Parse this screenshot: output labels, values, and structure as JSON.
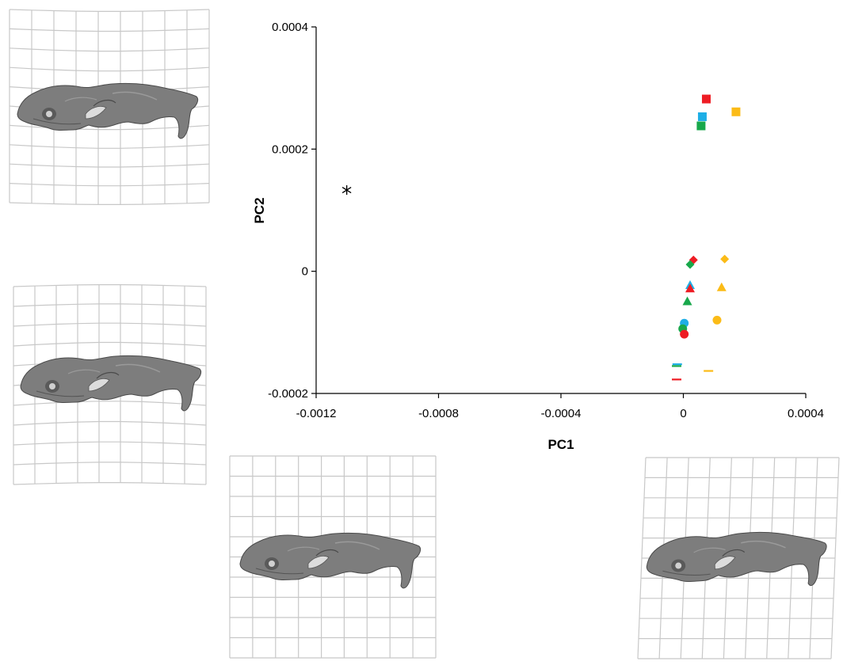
{
  "colors": {
    "red": "#ee1c24",
    "blue": "#1eaee6",
    "green": "#18a84b",
    "orange": "#fbbb17",
    "black": "#000000",
    "grid": "#c8c8c8",
    "skull": "#7d7d7d"
  },
  "chart_data": {
    "type": "scatter",
    "xlabel": "PC1",
    "ylabel": "PC2",
    "xlim": [
      -0.0012,
      0.0004
    ],
    "ylim": [
      -0.0002,
      0.0004
    ],
    "x_ticks": [
      {
        "value": -0.0012,
        "label": "-0.0012"
      },
      {
        "value": -0.0008,
        "label": "-0.0008"
      },
      {
        "value": -0.0004,
        "label": "-0.0004"
      },
      {
        "value": 0,
        "label": "0"
      },
      {
        "value": 0.0004,
        "label": "0.0004"
      }
    ],
    "y_ticks": [
      {
        "value": -0.0002,
        "label": "-0.0002"
      },
      {
        "value": 0,
        "label": "0"
      },
      {
        "value": 0.0002,
        "label": "0.0002"
      },
      {
        "value": 0.0004,
        "label": "0.0004"
      }
    ],
    "grid": false,
    "legend": "none",
    "points": [
      {
        "x": -0.0011,
        "y": 0.000133,
        "marker": "asterisk",
        "color": "black"
      },
      {
        "x": 7.5e-05,
        "y": 0.000282,
        "marker": "square",
        "color": "red"
      },
      {
        "x": 0.000172,
        "y": 0.000261,
        "marker": "square",
        "color": "orange"
      },
      {
        "x": 6.2e-05,
        "y": 0.000253,
        "marker": "square",
        "color": "blue"
      },
      {
        "x": 5.8e-05,
        "y": 0.000238,
        "marker": "square",
        "color": "green"
      },
      {
        "x": 3.3e-05,
        "y": 1.85e-05,
        "marker": "diamond",
        "color": "red"
      },
      {
        "x": 0.000135,
        "y": 2e-05,
        "marker": "diamond",
        "color": "orange"
      },
      {
        "x": 2.2e-05,
        "y": 1.1e-05,
        "marker": "diamond",
        "color": "green"
      },
      {
        "x": 2.2e-05,
        "y": -2.25e-05,
        "marker": "triangle",
        "color": "blue"
      },
      {
        "x": 2.2e-05,
        "y": -2.8e-05,
        "marker": "triangle",
        "color": "red"
      },
      {
        "x": 0.000125,
        "y": -2.6e-05,
        "marker": "triangle",
        "color": "orange"
      },
      {
        "x": 1.3e-05,
        "y": -4.9e-05,
        "marker": "triangle",
        "color": "green"
      },
      {
        "x": 3e-06,
        "y": -8.5e-05,
        "marker": "circle",
        "color": "blue"
      },
      {
        "x": 0.00011,
        "y": -8e-05,
        "marker": "circle",
        "color": "orange"
      },
      {
        "x": -2e-06,
        "y": -9.4e-05,
        "marker": "circle",
        "color": "green"
      },
      {
        "x": 3e-06,
        "y": -0.000103,
        "marker": "circle",
        "color": "red"
      },
      {
        "x": -2e-05,
        "y": -0.000152,
        "marker": "dash",
        "color": "blue"
      },
      {
        "x": -2.2e-05,
        "y": -0.000155,
        "marker": "dash",
        "color": "green"
      },
      {
        "x": 8.2e-05,
        "y": -0.000163,
        "marker": "dash",
        "color": "orange"
      },
      {
        "x": -2.2e-05,
        "y": -0.000177,
        "marker": "dash",
        "color": "red"
      }
    ]
  },
  "deformation_grids": [
    {
      "name": "grid-top-left",
      "skew": 0,
      "rows_warp": 1
    },
    {
      "name": "grid-middle-left",
      "skew": 0,
      "rows_warp": -1
    },
    {
      "name": "grid-bottom-center",
      "skew": 0,
      "rows_warp": 0
    },
    {
      "name": "grid-bottom-right",
      "skew": 1,
      "rows_warp": 0
    }
  ]
}
